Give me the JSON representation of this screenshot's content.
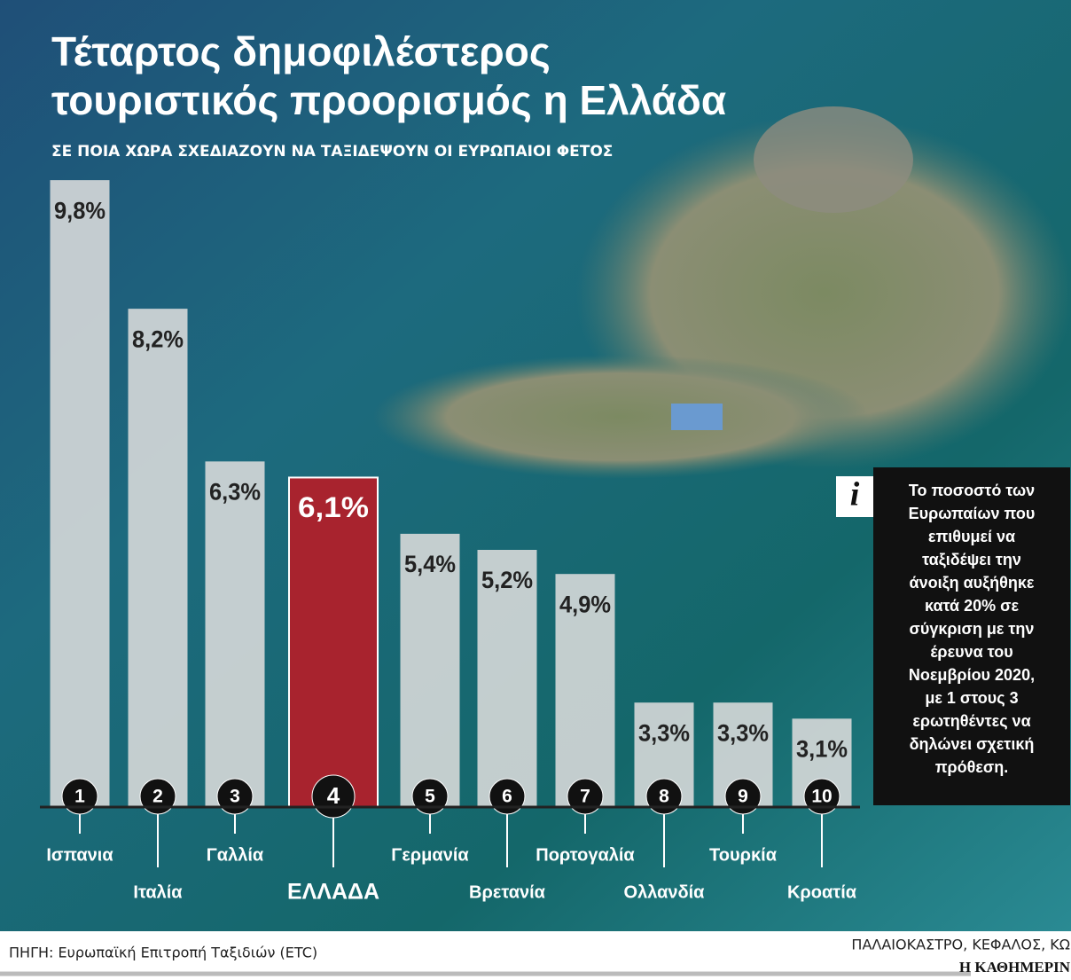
{
  "chart_data": {
    "type": "bar",
    "title": [
      "Τέταρτος δημοφιλέστερος",
      "τουριστικός προορισμός η Ελλάδα"
    ],
    "subtitle": "ΣΕ ΠΟΙΑ ΧΩΡΑ ΣΧΕΔΙΑΖΟΥΝ ΝΑ ΤΑΞΙΔΕΨΟΥΝ ΟΙ ΕΥΡΩΠΑΙΟΙ ΦΕΤΟΣ",
    "categories": [
      "Ισπανια",
      "Ιταλία",
      "Γαλλία",
      "ΕΛΛΑΔΑ",
      "Γερμανία",
      "Βρετανία",
      "Πορτογαλία",
      "Ολλανδία",
      "Τουρκία",
      "Κροατία"
    ],
    "ranks": [
      1,
      2,
      3,
      4,
      5,
      6,
      7,
      8,
      9,
      10
    ],
    "values": [
      9.8,
      8.2,
      6.3,
      6.1,
      5.4,
      5.2,
      4.9,
      3.3,
      3.3,
      3.1
    ],
    "value_labels": [
      "9,8%",
      "8,2%",
      "6,3%",
      "6,1%",
      "5,4%",
      "5,2%",
      "4,9%",
      "3,3%",
      "3,3%",
      "3,1%"
    ],
    "colors": [
      "#dcdcdc",
      "#dcdcdc",
      "#dcdcdc",
      "#a8232e",
      "#dcdcdc",
      "#dcdcdc",
      "#dcdcdc",
      "#dcdcdc",
      "#dcdcdc",
      "#dcdcdc"
    ],
    "ylim": [
      2,
      10
    ],
    "info_icon": "i",
    "info": [
      "Το ποσοστό των",
      "Ευρωπαίων που",
      "επιθυμεί να",
      "ταξιδέψει την",
      "άνοιξη αυξήθηκε",
      "κατά 20% σε",
      "σύγκριση με την",
      "έρευνα του",
      "Νοεμβρίου 2020,",
      "με 1 στους 3",
      "ερωτηθέντες να",
      "δηλώνει σχετική",
      "πρόθεση."
    ],
    "source": "ΠΗΓΗ: Ευρωπαϊκή Επιτροπή Ταξιδιών (ETC)",
    "photo_caption": "ΠΑΛΑΙΟΚΑΣΤΡΟ, ΚΕΦΑΛΟΣ, ΚΩ",
    "brand": "Η ΚΑΘΗΜΕΡΙΝ"
  }
}
